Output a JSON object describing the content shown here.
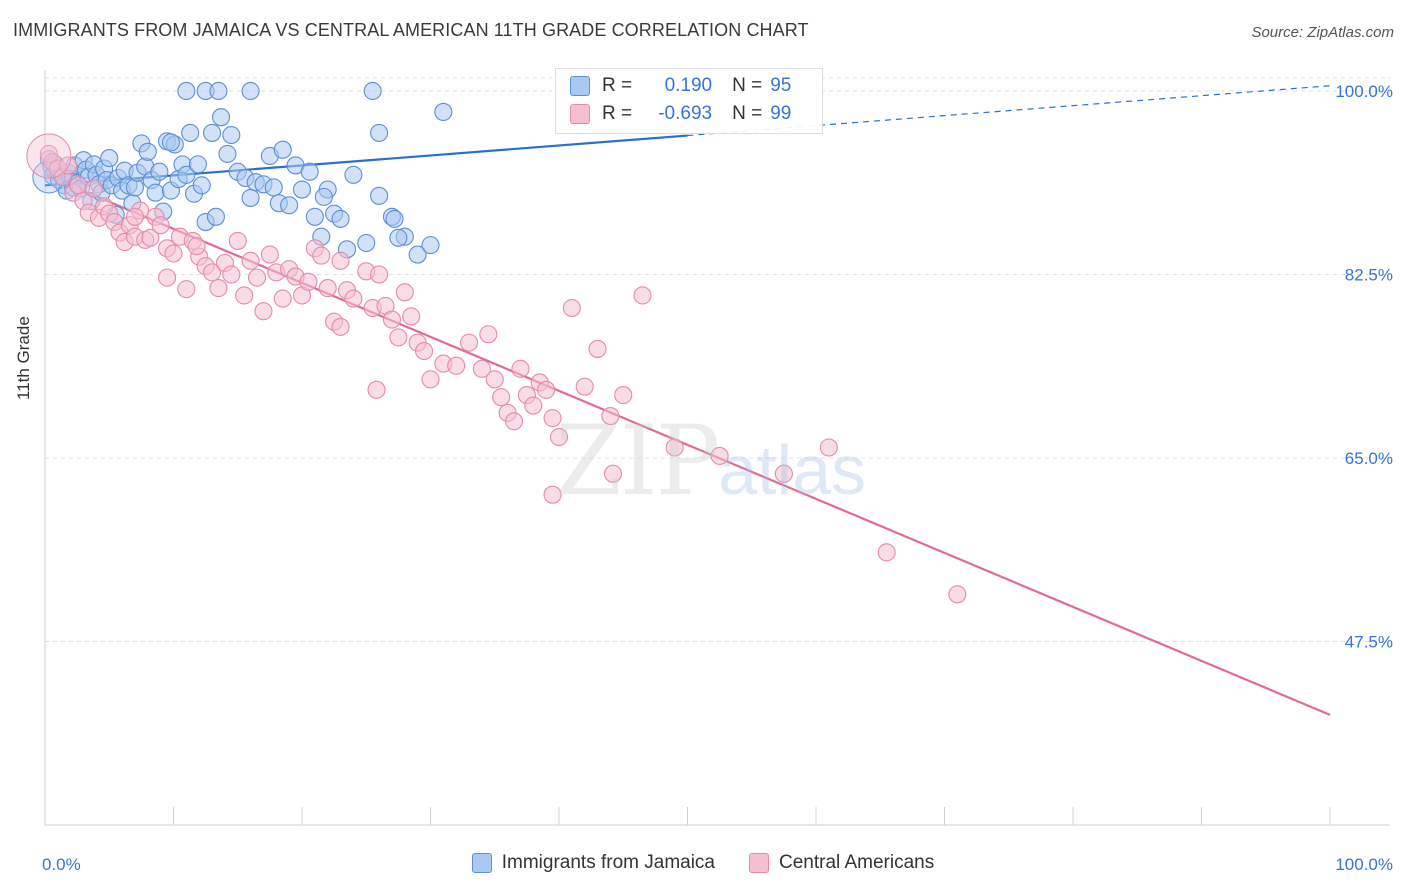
{
  "title": "IMMIGRANTS FROM JAMAICA VS CENTRAL AMERICAN 11TH GRADE CORRELATION CHART",
  "source": "Source: ZipAtlas.com",
  "ylabel": "11th Grade",
  "watermark": {
    "zip": "ZIP",
    "atlas": "atlas"
  },
  "stats": [
    {
      "r_label": "R =",
      "r_value": "0.190",
      "n_label": "N =",
      "n_value": "95"
    },
    {
      "r_label": "R =",
      "r_value": "-0.693",
      "n_label": "N =",
      "n_value": "99"
    }
  ],
  "colors": {
    "blue_fill": "#a9c8f2",
    "blue_stroke": "#5b8fd6",
    "blue_line": "#2a6fd0",
    "pink_fill": "#f6bfd1",
    "pink_stroke": "#e58aa8",
    "pink_line": "#e06a95",
    "tick_label": "#3575d8",
    "grid": "#e2e2e2"
  },
  "chart_data": {
    "type": "scatter",
    "title": "IMMIGRANTS FROM JAMAICA VS CENTRAL AMERICAN 11TH GRADE CORRELATION CHART",
    "xlabel": "",
    "ylabel": "11th Grade",
    "xlim": [
      0,
      100
    ],
    "ylim": [
      30,
      102
    ],
    "x_tick_labels": [
      "0.0%",
      "100.0%"
    ],
    "y_ticks": [
      100.0,
      82.5,
      65.0,
      47.5
    ],
    "y_tick_labels": [
      "100.0%",
      "82.5%",
      "65.0%",
      "47.5%"
    ],
    "grid": true,
    "legend_position": "bottom",
    "series": [
      {
        "name": "Immigrants from Jamaica",
        "color": "#a9c8f2",
        "trend": {
          "x": [
            0,
            100
          ],
          "y": [
            91.0,
            100.5
          ],
          "solid_until": 50
        },
        "points": [
          [
            0.3,
            93.5
          ],
          [
            0.5,
            92.8
          ],
          [
            0.6,
            91.9
          ],
          [
            0.8,
            93.0
          ],
          [
            1.0,
            92.5
          ],
          [
            1.1,
            91.5
          ],
          [
            1.3,
            92.0
          ],
          [
            1.5,
            91.0
          ],
          [
            1.7,
            90.5
          ],
          [
            1.8,
            92.2
          ],
          [
            2.0,
            91.6
          ],
          [
            2.2,
            90.8
          ],
          [
            2.3,
            92.9
          ],
          [
            2.5,
            91.2
          ],
          [
            2.8,
            90.7
          ],
          [
            3.0,
            93.4
          ],
          [
            3.2,
            92.5
          ],
          [
            3.4,
            91.8
          ],
          [
            3.6,
            89.5
          ],
          [
            3.8,
            93.0
          ],
          [
            4.0,
            92.0
          ],
          [
            4.2,
            91.1
          ],
          [
            4.4,
            90.3
          ],
          [
            4.6,
            92.6
          ],
          [
            4.8,
            91.5
          ],
          [
            5.0,
            93.6
          ],
          [
            5.2,
            91.0
          ],
          [
            5.5,
            88.2
          ],
          [
            5.7,
            91.7
          ],
          [
            6.0,
            90.5
          ],
          [
            6.2,
            92.4
          ],
          [
            6.5,
            91.0
          ],
          [
            6.8,
            89.3
          ],
          [
            7.0,
            90.8
          ],
          [
            7.2,
            92.2
          ],
          [
            7.5,
            95.0
          ],
          [
            7.8,
            92.8
          ],
          [
            8.0,
            94.2
          ],
          [
            8.3,
            91.5
          ],
          [
            8.6,
            90.3
          ],
          [
            8.9,
            92.3
          ],
          [
            9.2,
            88.5
          ],
          [
            9.5,
            95.2
          ],
          [
            9.8,
            90.5
          ],
          [
            10.1,
            94.9
          ],
          [
            10.4,
            91.6
          ],
          [
            10.7,
            93.0
          ],
          [
            11.0,
            92.0
          ],
          [
            11.3,
            96.0
          ],
          [
            11.6,
            90.2
          ],
          [
            11.9,
            93.0
          ],
          [
            12.2,
            91.0
          ],
          [
            12.5,
            87.5
          ],
          [
            13.0,
            96.0
          ],
          [
            13.3,
            88.0
          ],
          [
            13.7,
            97.5
          ],
          [
            14.2,
            94.0
          ],
          [
            14.5,
            95.8
          ],
          [
            15.0,
            92.3
          ],
          [
            15.6,
            91.7
          ],
          [
            16.0,
            89.8
          ],
          [
            16.4,
            91.3
          ],
          [
            17.0,
            91.1
          ],
          [
            17.5,
            93.8
          ],
          [
            17.8,
            90.8
          ],
          [
            18.2,
            89.3
          ],
          [
            18.5,
            94.4
          ],
          [
            19.0,
            89.1
          ],
          [
            19.5,
            92.9
          ],
          [
            20.0,
            90.6
          ],
          [
            20.6,
            92.3
          ],
          [
            21.0,
            88.0
          ],
          [
            21.5,
            86.1
          ],
          [
            22.0,
            90.6
          ],
          [
            22.5,
            88.3
          ],
          [
            23.0,
            87.8
          ],
          [
            23.5,
            84.9
          ],
          [
            24.0,
            92.0
          ],
          [
            25.0,
            85.5
          ],
          [
            26.0,
            90.0
          ],
          [
            27.0,
            88.0
          ],
          [
            28.0,
            86.1
          ],
          [
            29.0,
            84.4
          ],
          [
            30.0,
            85.3
          ],
          [
            11.0,
            100.0
          ],
          [
            12.5,
            100.0
          ],
          [
            13.5,
            100.0
          ],
          [
            16.0,
            100.0
          ],
          [
            25.5,
            100.0
          ],
          [
            26.0,
            96.0
          ],
          [
            31.0,
            98.0
          ],
          [
            27.5,
            86.0
          ],
          [
            27.2,
            87.8
          ],
          [
            9.8,
            95.1
          ],
          [
            21.7,
            89.9
          ]
        ]
      },
      {
        "name": "Central Americans",
        "color": "#f6bfd1",
        "trend": {
          "x": [
            0,
            100
          ],
          "y": [
            92.0,
            40.5
          ]
        },
        "points": [
          [
            0.3,
            94.0
          ],
          [
            0.6,
            93.2
          ],
          [
            1.0,
            92.6
          ],
          [
            1.4,
            91.8
          ],
          [
            1.8,
            92.9
          ],
          [
            2.2,
            90.3
          ],
          [
            2.6,
            91.0
          ],
          [
            3.0,
            89.5
          ],
          [
            3.4,
            88.4
          ],
          [
            3.8,
            90.7
          ],
          [
            4.2,
            87.9
          ],
          [
            4.6,
            89.0
          ],
          [
            5.0,
            88.3
          ],
          [
            5.4,
            87.5
          ],
          [
            5.8,
            86.5
          ],
          [
            6.2,
            85.6
          ],
          [
            6.6,
            87.2
          ],
          [
            7.0,
            86.1
          ],
          [
            7.4,
            88.6
          ],
          [
            7.8,
            85.8
          ],
          [
            8.2,
            86.0
          ],
          [
            8.6,
            88.0
          ],
          [
            9.0,
            87.2
          ],
          [
            9.5,
            85.0
          ],
          [
            10.0,
            84.5
          ],
          [
            10.5,
            86.1
          ],
          [
            11.0,
            81.1
          ],
          [
            11.5,
            85.7
          ],
          [
            12.0,
            84.2
          ],
          [
            12.5,
            83.3
          ],
          [
            13.0,
            82.7
          ],
          [
            13.5,
            81.2
          ],
          [
            14.0,
            83.6
          ],
          [
            14.5,
            82.5
          ],
          [
            15.0,
            85.7
          ],
          [
            15.5,
            80.5
          ],
          [
            16.0,
            83.8
          ],
          [
            16.5,
            82.2
          ],
          [
            17.0,
            79.0
          ],
          [
            17.5,
            84.4
          ],
          [
            18.0,
            82.7
          ],
          [
            18.5,
            80.2
          ],
          [
            19.0,
            83.0
          ],
          [
            19.5,
            82.3
          ],
          [
            20.0,
            80.5
          ],
          [
            20.5,
            81.8
          ],
          [
            21.0,
            85.0
          ],
          [
            21.5,
            84.3
          ],
          [
            22.0,
            81.2
          ],
          [
            22.5,
            78.0
          ],
          [
            23.0,
            83.8
          ],
          [
            23.5,
            81.0
          ],
          [
            24.0,
            80.2
          ],
          [
            25.0,
            82.8
          ],
          [
            25.5,
            79.3
          ],
          [
            26.0,
            82.5
          ],
          [
            26.5,
            79.5
          ],
          [
            27.0,
            78.2
          ],
          [
            27.5,
            76.5
          ],
          [
            28.0,
            80.8
          ],
          [
            28.5,
            78.5
          ],
          [
            29.0,
            76.0
          ],
          [
            29.5,
            75.2
          ],
          [
            30.0,
            72.5
          ],
          [
            31.0,
            74.0
          ],
          [
            32.0,
            73.8
          ],
          [
            33.0,
            76.0
          ],
          [
            34.0,
            73.5
          ],
          [
            34.5,
            76.8
          ],
          [
            35.0,
            72.5
          ],
          [
            35.5,
            70.8
          ],
          [
            36.0,
            69.3
          ],
          [
            36.5,
            68.5
          ],
          [
            37.0,
            73.5
          ],
          [
            37.5,
            71.0
          ],
          [
            38.0,
            70.0
          ],
          [
            38.5,
            72.2
          ],
          [
            39.0,
            71.5
          ],
          [
            39.5,
            68.8
          ],
          [
            40.0,
            67.0
          ],
          [
            41.0,
            79.3
          ],
          [
            42.0,
            71.8
          ],
          [
            43.0,
            75.4
          ],
          [
            44.0,
            69.0
          ],
          [
            45.0,
            71.0
          ],
          [
            46.5,
            80.5
          ],
          [
            7.0,
            88.0
          ],
          [
            9.5,
            82.2
          ],
          [
            11.8,
            85.2
          ],
          [
            23.0,
            77.5
          ],
          [
            25.8,
            71.5
          ],
          [
            39.5,
            61.5
          ],
          [
            44.2,
            63.5
          ],
          [
            49.0,
            66.0
          ],
          [
            52.5,
            65.2
          ],
          [
            57.5,
            63.5
          ],
          [
            61.0,
            66.0
          ],
          [
            65.5,
            56.0
          ],
          [
            71.0,
            52.0
          ]
        ]
      }
    ]
  }
}
